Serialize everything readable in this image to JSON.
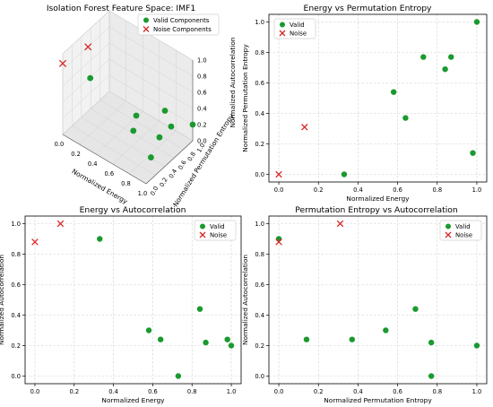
{
  "colors": {
    "valid": "#1a9a2e",
    "noise": "#d62728"
  },
  "chart_data": [
    {
      "type": "scatter",
      "projection": "3d",
      "title": "Isolation Forest Feature Space: IMF1",
      "xlabel": "Normalized Energy",
      "ylabel": "Normalized Permutation Entropy",
      "zlabel": "Normalized Autocorrelation",
      "xticks": [
        "0.0",
        "0.2",
        "0.4",
        "0.6",
        "0.8",
        "1.0"
      ],
      "yticks": [
        "0.0",
        "0.2",
        "0.4",
        "0.6",
        "0.8",
        "1.0"
      ],
      "zticks": [
        "0.0",
        "0.2",
        "0.4",
        "0.6",
        "0.8",
        "1.0"
      ],
      "legend": {
        "position": "top-right",
        "entries": [
          "Valid Components",
          "Noise Components"
        ]
      },
      "series": [
        {
          "name": "Valid Components",
          "marker": "circle",
          "color": "#1a9a2e",
          "x": [
            0.33,
            0.58,
            0.64,
            0.73,
            0.84,
            0.87,
            0.98,
            1.0
          ],
          "y": [
            0.0,
            0.54,
            0.37,
            0.77,
            0.69,
            0.77,
            0.14,
            1.0
          ],
          "z": [
            0.9,
            0.3,
            0.24,
            0.0,
            0.44,
            0.22,
            0.24,
            0.2
          ]
        },
        {
          "name": "Noise Components",
          "marker": "x",
          "color": "#d62728",
          "x": [
            0.0,
            0.13
          ],
          "y": [
            0.0,
            0.31
          ],
          "z": [
            0.88,
            1.0
          ]
        }
      ]
    },
    {
      "type": "scatter",
      "title": "Energy vs Permutation Entropy",
      "xlabel": "Normalized Energy",
      "ylabel": "Normalized Permutation Entropy",
      "xlim": [
        -0.05,
        1.05
      ],
      "ylim": [
        -0.05,
        1.05
      ],
      "xticks": [
        0.0,
        0.2,
        0.4,
        0.6,
        0.8,
        1.0
      ],
      "yticks": [
        0.0,
        0.2,
        0.4,
        0.6,
        0.8,
        1.0
      ],
      "grid": true,
      "legend": {
        "position": "top-left",
        "entries": [
          "Valid",
          "Noise"
        ]
      },
      "series": [
        {
          "name": "Valid",
          "marker": "circle",
          "color": "#1a9a2e",
          "x": [
            0.33,
            0.58,
            0.64,
            0.73,
            0.84,
            0.87,
            0.98,
            1.0
          ],
          "y": [
            0.0,
            0.54,
            0.37,
            0.77,
            0.69,
            0.77,
            0.14,
            1.0
          ]
        },
        {
          "name": "Noise",
          "marker": "x",
          "color": "#d62728",
          "x": [
            0.0,
            0.13
          ],
          "y": [
            0.0,
            0.31
          ]
        }
      ]
    },
    {
      "type": "scatter",
      "title": "Energy vs Autocorrelation",
      "xlabel": "Normalized Energy",
      "ylabel": "Normalized Autocorrelation",
      "xlim": [
        -0.05,
        1.05
      ],
      "ylim": [
        -0.05,
        1.05
      ],
      "xticks": [
        0.0,
        0.2,
        0.4,
        0.6,
        0.8,
        1.0
      ],
      "yticks": [
        0.0,
        0.2,
        0.4,
        0.6,
        0.8,
        1.0
      ],
      "grid": true,
      "legend": {
        "position": "top-right",
        "entries": [
          "Valid",
          "Noise"
        ]
      },
      "series": [
        {
          "name": "Valid",
          "marker": "circle",
          "color": "#1a9a2e",
          "x": [
            0.33,
            0.58,
            0.64,
            0.73,
            0.84,
            0.87,
            0.98,
            1.0
          ],
          "y": [
            0.9,
            0.3,
            0.24,
            0.0,
            0.44,
            0.22,
            0.24,
            0.2
          ]
        },
        {
          "name": "Noise",
          "marker": "x",
          "color": "#d62728",
          "x": [
            0.0,
            0.13
          ],
          "y": [
            0.88,
            1.0
          ]
        }
      ]
    },
    {
      "type": "scatter",
      "title": "Permutation Entropy vs Autocorrelation",
      "xlabel": "Normalized Permutation Entropy",
      "ylabel": "Normalized Autocorrelation",
      "xlim": [
        -0.05,
        1.05
      ],
      "ylim": [
        -0.05,
        1.05
      ],
      "xticks": [
        0.0,
        0.2,
        0.4,
        0.6,
        0.8,
        1.0
      ],
      "yticks": [
        0.0,
        0.2,
        0.4,
        0.6,
        0.8,
        1.0
      ],
      "grid": true,
      "legend": {
        "position": "top-right",
        "entries": [
          "Valid",
          "Noise"
        ]
      },
      "series": [
        {
          "name": "Valid",
          "marker": "circle",
          "color": "#1a9a2e",
          "x": [
            0.0,
            0.14,
            0.37,
            0.54,
            0.69,
            0.77,
            0.77,
            1.0
          ],
          "y": [
            0.9,
            0.24,
            0.24,
            0.3,
            0.44,
            0.22,
            0.0,
            0.2
          ]
        },
        {
          "name": "Noise",
          "marker": "x",
          "color": "#d62728",
          "x": [
            0.0,
            0.31
          ],
          "y": [
            0.88,
            1.0
          ]
        }
      ]
    }
  ]
}
